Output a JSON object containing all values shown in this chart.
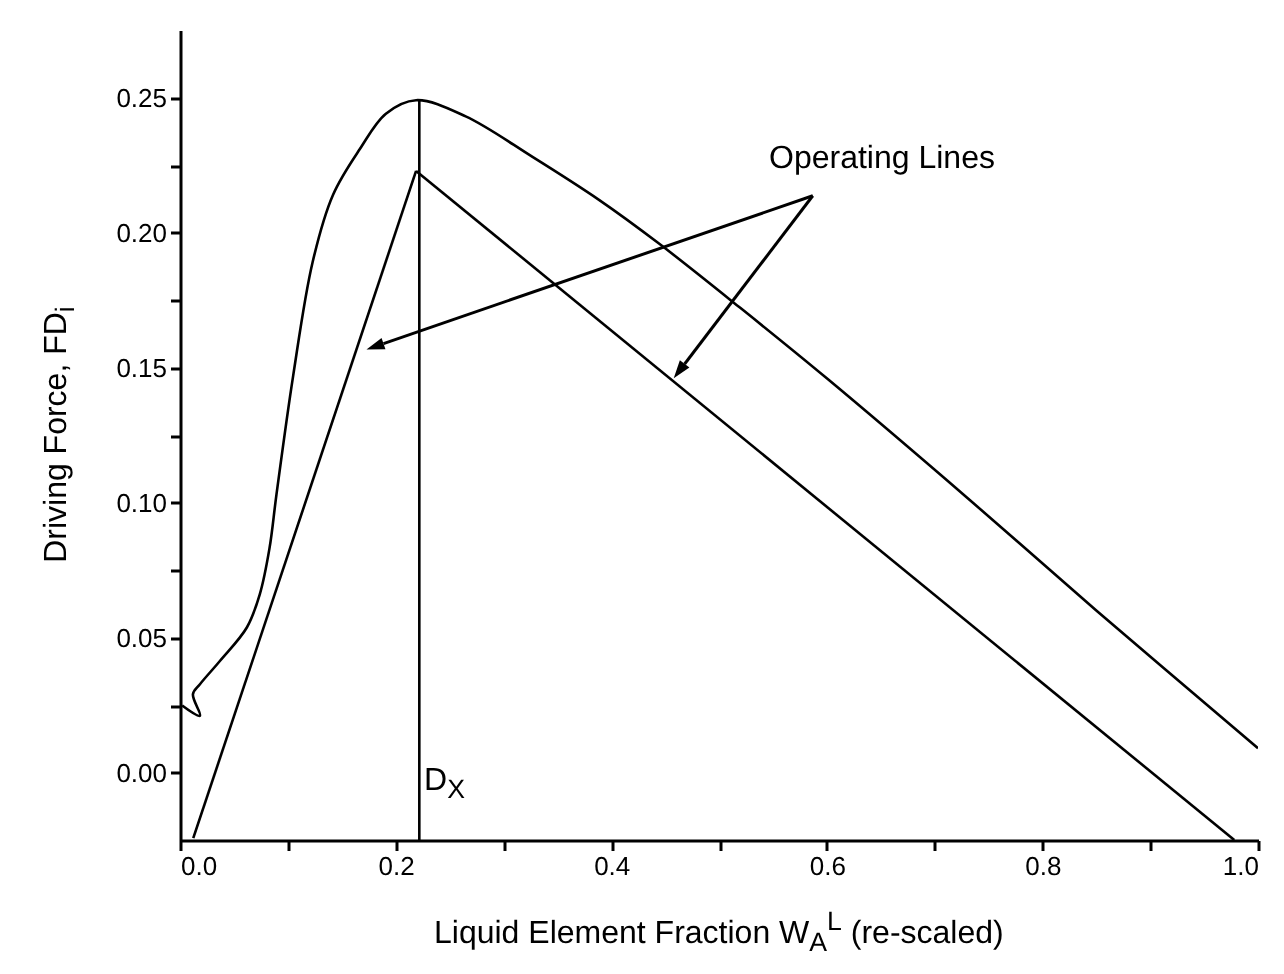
{
  "chart_data": {
    "type": "line",
    "xlabel": "Liquid Element Fraction W$_{A}$$^{L}$ (re-scaled)",
    "ylabel": "Driving Force, FD$_{i}$",
    "xlim": [
      0,
      1.0
    ],
    "ylim": [
      -0.025,
      0.275
    ],
    "xticks": [
      {
        "value": 0,
        "label": "0.0"
      },
      {
        "value": 0.1,
        "label": null
      },
      {
        "value": 0.2,
        "label": "0.2"
      },
      {
        "value": 0.3,
        "label": null
      },
      {
        "value": 0.4,
        "label": "0.4"
      },
      {
        "value": 0.5,
        "label": null
      },
      {
        "value": 0.6,
        "label": "0.6"
      },
      {
        "value": 0.7,
        "label": null
      },
      {
        "value": 0.8,
        "label": "0.8"
      },
      {
        "value": 0.9,
        "label": null
      },
      {
        "value": 1.0,
        "label": "1.0"
      }
    ],
    "yticks": [
      {
        "value": 0,
        "label": "0.00"
      },
      {
        "value": 0.025,
        "label": null
      },
      {
        "value": 0.05,
        "label": "0.05"
      },
      {
        "value": 0.075,
        "label": null
      },
      {
        "value": 0.1,
        "label": "0.10"
      },
      {
        "value": 0.125,
        "label": null
      },
      {
        "value": 0.15,
        "label": "0.15"
      },
      {
        "value": 0.175,
        "label": null
      },
      {
        "value": 0.2,
        "label": "0.20"
      },
      {
        "value": 0.225,
        "label": null
      },
      {
        "value": 0.25,
        "label": "0.25"
      }
    ],
    "annotations": [
      "Operating Lines",
      "D$_{X}$"
    ],
    "series": [
      {
        "color": "#000000",
        "x": [
          0.002,
          0.0185,
          0.012,
          0.0185,
          0.037,
          0.062,
          0.074,
          0.083,
          0.0895,
          0.105,
          0.123,
          0.142,
          0.167,
          0.191,
          0.219,
          0.265,
          0.327,
          0.389,
          0.444,
          0.52,
          0.6,
          0.731,
          0.85,
          1.0
        ],
        "values": [
          0.0248,
          0.021,
          0.029,
          0.0327,
          0.0413,
          0.0537,
          0.066,
          0.083,
          0.103,
          0.147,
          0.189,
          0.214,
          0.231,
          0.244,
          0.249,
          0.243,
          0.228,
          0.212,
          0.196,
          0.172,
          0.146,
          0.1015,
          0.06,
          0.009
        ]
      },
      {
        "color": "#000000",
        "x": [
          0.0123,
          0.219
        ],
        "values": [
          -0.0243,
          0.2228
        ]
      },
      {
        "color": "#000000",
        "x": [
          0.219,
          0.978
        ],
        "values": [
          0.2228,
          -0.025
        ]
      },
      {
        "color": "#000000",
        "x": [
          0.222,
          0.222
        ],
        "values": [
          -0.025,
          0.249
        ]
      }
    ]
  }
}
